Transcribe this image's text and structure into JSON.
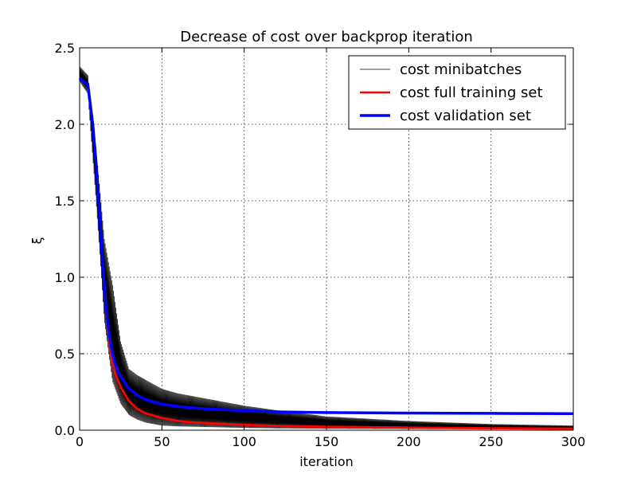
{
  "chart_data": {
    "type": "line",
    "title": "Decrease of cost over backprop iteration",
    "xlabel": "iteration",
    "ylabel": "ξ",
    "xlim": [
      0,
      300
    ],
    "ylim": [
      0,
      2.5
    ],
    "x_ticks": [
      0,
      50,
      100,
      150,
      200,
      250,
      300
    ],
    "x_tick_labels": [
      "0",
      "50",
      "100",
      "150",
      "200",
      "250",
      "300"
    ],
    "y_ticks": [
      0,
      0.5,
      1.0,
      1.5,
      2.0,
      2.5
    ],
    "y_tick_labels": [
      "0.0",
      "0.5",
      "1.0",
      "1.5",
      "2.0",
      "2.5"
    ],
    "grid": true,
    "legend_position": "top-right",
    "series": [
      {
        "name": "cost minibatches",
        "color": "#000000",
        "style": "thin-oscillating",
        "x": [
          0,
          5,
          10,
          15,
          20,
          25,
          30,
          35,
          40,
          45,
          50,
          60,
          80,
          100,
          120,
          150,
          200,
          250,
          300
        ],
        "lower": [
          2.28,
          2.2,
          1.5,
          0.72,
          0.32,
          0.17,
          0.1,
          0.07,
          0.05,
          0.04,
          0.03,
          0.025,
          0.02,
          0.015,
          0.012,
          0.01,
          0.008,
          0.006,
          0.005
        ],
        "upper": [
          2.38,
          2.32,
          1.85,
          1.25,
          0.95,
          0.58,
          0.4,
          0.36,
          0.33,
          0.3,
          0.27,
          0.24,
          0.2,
          0.16,
          0.13,
          0.09,
          0.06,
          0.04,
          0.03
        ]
      },
      {
        "name": "cost full training set",
        "color": "#ff0000",
        "x": [
          0,
          5,
          8,
          10,
          12,
          14,
          16,
          18,
          20,
          22,
          25,
          30,
          35,
          40,
          50,
          60,
          70,
          80,
          100,
          120,
          150,
          200,
          250,
          300
        ],
        "y": [
          2.3,
          2.26,
          2.0,
          1.75,
          1.45,
          1.1,
          0.8,
          0.58,
          0.45,
          0.36,
          0.28,
          0.19,
          0.14,
          0.11,
          0.08,
          0.06,
          0.05,
          0.045,
          0.035,
          0.028,
          0.022,
          0.017,
          0.013,
          0.01
        ]
      },
      {
        "name": "cost validation set",
        "color": "#0000ff",
        "x": [
          0,
          5,
          8,
          10,
          12,
          14,
          16,
          18,
          20,
          22,
          25,
          30,
          35,
          40,
          50,
          60,
          70,
          80,
          100,
          120,
          150,
          200,
          250,
          300
        ],
        "y": [
          2.3,
          2.26,
          2.0,
          1.75,
          1.45,
          1.1,
          0.82,
          0.62,
          0.5,
          0.42,
          0.35,
          0.27,
          0.23,
          0.2,
          0.17,
          0.155,
          0.145,
          0.138,
          0.128,
          0.12,
          0.115,
          0.112,
          0.11,
          0.108
        ]
      }
    ]
  }
}
